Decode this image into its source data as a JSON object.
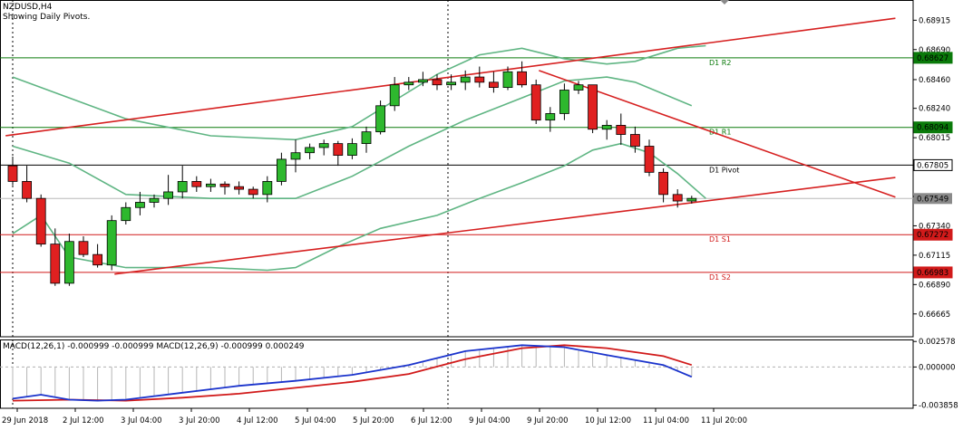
{
  "header": {
    "symbol": "NZDUSD,H4",
    "note": "Showing Daily Pivots."
  },
  "colors": {
    "bull": "#2eb82e",
    "bear": "#e02020",
    "bollinger": "#5fb583",
    "trendline": "#d62020",
    "r_level": "#0a7a0a",
    "s_level": "#d11a1a",
    "pivot_level": "#000000",
    "macd_main": "#1a33cc",
    "macd_signal": "#d11a1a",
    "price_badge": "#8a8a8a"
  },
  "chart_data": {
    "type": "candlestick",
    "main": {
      "ylim": [
        0.6649,
        0.6907
      ],
      "y_ticks": [
        "0.68915",
        "0.68690",
        "0.68460",
        "0.68240",
        "0.68015",
        "0.67790",
        "0.67565",
        "0.67340",
        "0.67115",
        "0.66890",
        "0.66665"
      ],
      "x_ticks": [
        "29 Jun 2018",
        "2 Jul 12:00",
        "3 Jul 04:00",
        "3 Jul 20:00",
        "4 Jul 12:00",
        "5 Jul 04:00",
        "5 Jul 20:00",
        "6 Jul 12:00",
        "9 Jul 04:00",
        "9 Jul 20:00",
        "10 Jul 12:00",
        "11 Jul 04:00",
        "11 Jul 20:00"
      ],
      "candles": [
        {
          "o": 0.678,
          "h": 0.6787,
          "l": 0.6765,
          "c": 0.6768
        },
        {
          "o": 0.6768,
          "h": 0.678,
          "l": 0.6752,
          "c": 0.6755
        },
        {
          "o": 0.6755,
          "h": 0.6758,
          "l": 0.6718,
          "c": 0.672
        },
        {
          "o": 0.672,
          "h": 0.6732,
          "l": 0.6688,
          "c": 0.669
        },
        {
          "o": 0.669,
          "h": 0.6728,
          "l": 0.6688,
          "c": 0.6722
        },
        {
          "o": 0.6722,
          "h": 0.6726,
          "l": 0.671,
          "c": 0.6712
        },
        {
          "o": 0.6712,
          "h": 0.672,
          "l": 0.6702,
          "c": 0.6704
        },
        {
          "o": 0.6704,
          "h": 0.6742,
          "l": 0.67,
          "c": 0.6738
        },
        {
          "o": 0.6738,
          "h": 0.6752,
          "l": 0.6735,
          "c": 0.6748
        },
        {
          "o": 0.6748,
          "h": 0.676,
          "l": 0.6742,
          "c": 0.6752
        },
        {
          "o": 0.6752,
          "h": 0.6758,
          "l": 0.6748,
          "c": 0.6755
        },
        {
          "o": 0.6755,
          "h": 0.6773,
          "l": 0.675,
          "c": 0.676
        },
        {
          "o": 0.676,
          "h": 0.678,
          "l": 0.6755,
          "c": 0.6768
        },
        {
          "o": 0.6768,
          "h": 0.6772,
          "l": 0.676,
          "c": 0.6764
        },
        {
          "o": 0.6764,
          "h": 0.677,
          "l": 0.676,
          "c": 0.6766
        },
        {
          "o": 0.6766,
          "h": 0.6768,
          "l": 0.6758,
          "c": 0.6764
        },
        {
          "o": 0.6764,
          "h": 0.6768,
          "l": 0.6758,
          "c": 0.6762
        },
        {
          "o": 0.6762,
          "h": 0.6764,
          "l": 0.6755,
          "c": 0.6758
        },
        {
          "o": 0.6758,
          "h": 0.6772,
          "l": 0.6752,
          "c": 0.6768
        },
        {
          "o": 0.6768,
          "h": 0.679,
          "l": 0.6765,
          "c": 0.6785
        },
        {
          "o": 0.6785,
          "h": 0.68,
          "l": 0.6775,
          "c": 0.679
        },
        {
          "o": 0.679,
          "h": 0.6797,
          "l": 0.6785,
          "c": 0.6794
        },
        {
          "o": 0.6794,
          "h": 0.68,
          "l": 0.6788,
          "c": 0.6797
        },
        {
          "o": 0.6797,
          "h": 0.6799,
          "l": 0.678,
          "c": 0.6788
        },
        {
          "o": 0.6788,
          "h": 0.6801,
          "l": 0.6785,
          "c": 0.6797
        },
        {
          "o": 0.6797,
          "h": 0.681,
          "l": 0.679,
          "c": 0.6806
        },
        {
          "o": 0.6806,
          "h": 0.683,
          "l": 0.6804,
          "c": 0.6826
        },
        {
          "o": 0.6826,
          "h": 0.6848,
          "l": 0.6822,
          "c": 0.6842
        },
        {
          "o": 0.6842,
          "h": 0.6848,
          "l": 0.6838,
          "c": 0.6844
        },
        {
          "o": 0.6844,
          "h": 0.6852,
          "l": 0.6841,
          "c": 0.6846
        },
        {
          "o": 0.6846,
          "h": 0.685,
          "l": 0.6838,
          "c": 0.6842
        },
        {
          "o": 0.6842,
          "h": 0.685,
          "l": 0.6838,
          "c": 0.6844
        },
        {
          "o": 0.6844,
          "h": 0.6853,
          "l": 0.6838,
          "c": 0.6848
        },
        {
          "o": 0.6848,
          "h": 0.6856,
          "l": 0.684,
          "c": 0.6844
        },
        {
          "o": 0.6844,
          "h": 0.6852,
          "l": 0.6836,
          "c": 0.684
        },
        {
          "o": 0.684,
          "h": 0.6856,
          "l": 0.6838,
          "c": 0.6852
        },
        {
          "o": 0.6852,
          "h": 0.686,
          "l": 0.684,
          "c": 0.6842
        },
        {
          "o": 0.6842,
          "h": 0.6846,
          "l": 0.6812,
          "c": 0.6815
        },
        {
          "o": 0.6815,
          "h": 0.6825,
          "l": 0.6806,
          "c": 0.682
        },
        {
          "o": 0.682,
          "h": 0.6843,
          "l": 0.6815,
          "c": 0.6838
        },
        {
          "o": 0.6838,
          "h": 0.6845,
          "l": 0.6835,
          "c": 0.6842
        },
        {
          "o": 0.6842,
          "h": 0.6842,
          "l": 0.6805,
          "c": 0.6808
        },
        {
          "o": 0.6808,
          "h": 0.6815,
          "l": 0.68,
          "c": 0.6811
        },
        {
          "o": 0.6811,
          "h": 0.682,
          "l": 0.6796,
          "c": 0.6804
        },
        {
          "o": 0.6804,
          "h": 0.681,
          "l": 0.679,
          "c": 0.6795
        },
        {
          "o": 0.6795,
          "h": 0.68,
          "l": 0.6772,
          "c": 0.6775
        },
        {
          "o": 0.6775,
          "h": 0.6778,
          "l": 0.6752,
          "c": 0.6758
        },
        {
          "o": 0.6758,
          "h": 0.6762,
          "l": 0.6748,
          "c": 0.6753
        },
        {
          "o": 0.6753,
          "h": 0.6757,
          "l": 0.6751,
          "c": 0.6755
        }
      ],
      "bollinger": {
        "upper": [
          [
            0,
            0.6848
          ],
          [
            8,
            0.6816
          ],
          [
            14,
            0.6803
          ],
          [
            20,
            0.68
          ],
          [
            24,
            0.681
          ],
          [
            27,
            0.683
          ],
          [
            30,
            0.685
          ],
          [
            33,
            0.6865
          ],
          [
            36,
            0.687
          ],
          [
            39,
            0.6862
          ],
          [
            42,
            0.6858
          ],
          [
            44,
            0.686
          ],
          [
            47,
            0.687
          ],
          [
            49,
            0.6872
          ]
        ],
        "middle": [
          [
            0,
            0.6795
          ],
          [
            4,
            0.6782
          ],
          [
            8,
            0.6758
          ],
          [
            14,
            0.6755
          ],
          [
            20,
            0.6755
          ],
          [
            24,
            0.6772
          ],
          [
            28,
            0.6795
          ],
          [
            32,
            0.6815
          ],
          [
            36,
            0.6832
          ],
          [
            39,
            0.6845
          ],
          [
            42,
            0.6848
          ],
          [
            44,
            0.6844
          ],
          [
            46,
            0.6835
          ],
          [
            48,
            0.6826
          ]
        ],
        "lower": [
          [
            0,
            0.6728
          ],
          [
            2,
            0.6742
          ],
          [
            4,
            0.671
          ],
          [
            8,
            0.6702
          ],
          [
            14,
            0.6702
          ],
          [
            18,
            0.67
          ],
          [
            20,
            0.6702
          ],
          [
            23,
            0.6718
          ],
          [
            26,
            0.6732
          ],
          [
            30,
            0.6742
          ],
          [
            33,
            0.6755
          ],
          [
            36,
            0.6767
          ],
          [
            39,
            0.678
          ],
          [
            41,
            0.6792
          ],
          [
            43,
            0.6797
          ],
          [
            45,
            0.679
          ],
          [
            47,
            0.6774
          ],
          [
            49,
            0.6755
          ]
        ]
      },
      "trendlines": [
        {
          "from": [
            -0.5,
            0.6803
          ],
          "to": [
            62.4,
            0.6893
          ]
        },
        {
          "from": [
            7.2,
            0.6697
          ],
          "to": [
            62.4,
            0.6771
          ]
        },
        {
          "from": [
            37.2,
            0.6853
          ],
          "to": [
            62.4,
            0.6756
          ]
        }
      ],
      "levels": [
        {
          "name": "D1 R2",
          "value": 0.68627,
          "badge": "0.68627",
          "color": "r"
        },
        {
          "name": "D1 R1",
          "value": 0.68094,
          "badge": "0.68094",
          "color": "r"
        },
        {
          "name": "D1 Pivot",
          "value": 0.67805,
          "badge": "0.67805",
          "color": "p"
        },
        {
          "name": "D1 S1",
          "value": 0.67272,
          "badge": "0.67272",
          "color": "s"
        },
        {
          "name": "D1 S2",
          "value": 0.66983,
          "badge": "0.66983",
          "color": "s"
        }
      ],
      "current_price": "0.67549",
      "current_value": 0.67549
    },
    "macd": {
      "label": "MACD(12,26,1) -0.000999 -0.000999 MACD(12,26,9) -0.000999 0.000249",
      "ylim": [
        -0.00417,
        0.00278
      ],
      "y_ticks": [
        "0.002578",
        "0.000000",
        "-0.003858"
      ],
      "main": [
        [
          0,
          -0.0032
        ],
        [
          2,
          -0.0028
        ],
        [
          4,
          -0.0033
        ],
        [
          6,
          -0.0034
        ],
        [
          8,
          -0.0033
        ],
        [
          12,
          -0.0026
        ],
        [
          16,
          -0.0019
        ],
        [
          20,
          -0.0014
        ],
        [
          24,
          -0.0008
        ],
        [
          28,
          0.0002
        ],
        [
          32,
          0.0016
        ],
        [
          36,
          0.0022
        ],
        [
          39,
          0.002
        ],
        [
          42,
          0.0012
        ],
        [
          46,
          0.0002
        ],
        [
          48,
          -0.001
        ]
      ],
      "signal": [
        [
          0,
          -0.0034
        ],
        [
          4,
          -0.0033
        ],
        [
          8,
          -0.0034
        ],
        [
          12,
          -0.0031
        ],
        [
          16,
          -0.0027
        ],
        [
          20,
          -0.0021
        ],
        [
          24,
          -0.0015
        ],
        [
          28,
          -0.0007
        ],
        [
          32,
          0.0008
        ],
        [
          36,
          0.0019
        ],
        [
          39,
          0.0022
        ],
        [
          42,
          0.0019
        ],
        [
          46,
          0.0011
        ],
        [
          48,
          0.0002
        ]
      ]
    }
  }
}
